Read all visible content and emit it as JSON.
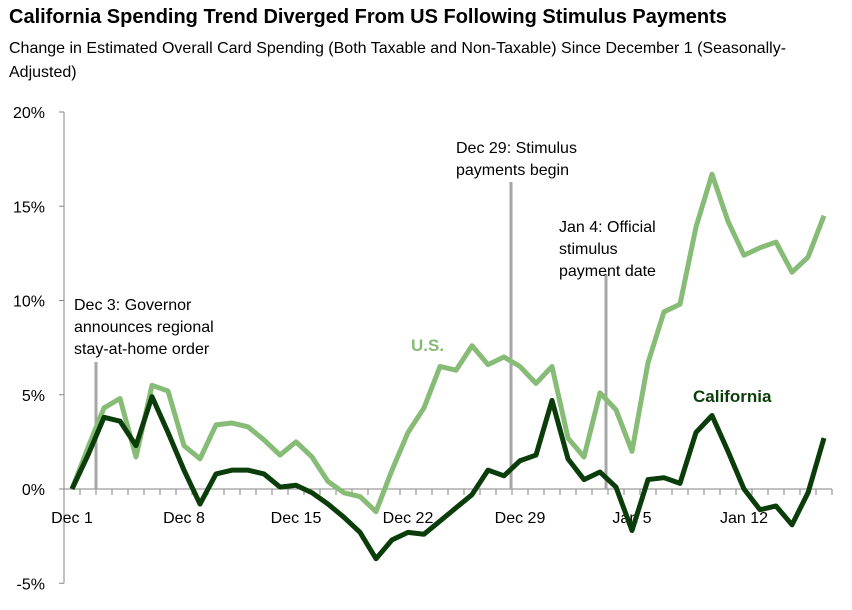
{
  "chart_data": {
    "type": "line",
    "title": "California Spending Trend Diverged From US Following Stimulus Payments",
    "subtitle": "Change in Estimated Overall Card Spending (Both Taxable and Non-Taxable) Since December 1 (Seasonally-Adjusted)",
    "xlabel": "",
    "ylabel": "",
    "ylim": [
      -5,
      20
    ],
    "yticks": [
      20,
      15,
      10,
      5,
      0,
      -5
    ],
    "ytick_labels": [
      "20%",
      "15%",
      "10%",
      "5%",
      "0%",
      "-5%"
    ],
    "xtick_labels": [
      {
        "label": "Dec 1",
        "day": 0
      },
      {
        "label": "Dec 8",
        "day": 7
      },
      {
        "label": "Dec 15",
        "day": 14
      },
      {
        "label": "Dec 22",
        "day": 21
      },
      {
        "label": "Dec 29",
        "day": 28
      },
      {
        "label": "Jan 5",
        "day": 35
      },
      {
        "label": "Jan 12",
        "day": 42
      }
    ],
    "x_start": "Dec 1",
    "x_end": "Jan 17",
    "grid": false,
    "series": [
      {
        "name": "U.S.",
        "color": "#86bc76",
        "values": [
          0,
          2.2,
          4.3,
          4.8,
          1.7,
          5.5,
          5.2,
          2.3,
          1.6,
          3.4,
          3.5,
          3.3,
          2.6,
          1.8,
          2.5,
          1.7,
          0.4,
          -0.2,
          -0.4,
          -1.2,
          1.0,
          3.0,
          4.3,
          6.5,
          6.3,
          7.6,
          6.6,
          7.0,
          6.5,
          5.6,
          6.5,
          2.7,
          1.7,
          5.1,
          4.2,
          2.0,
          6.7,
          9.4,
          9.8,
          13.9,
          16.7,
          14.2,
          12.4,
          12.8,
          13.1,
          11.5,
          12.3,
          14.5
        ]
      },
      {
        "name": "California",
        "color": "#0b3d0b",
        "values": [
          0,
          1.8,
          3.8,
          3.6,
          2.3,
          4.9,
          3.0,
          1.0,
          -0.8,
          0.8,
          1.0,
          1.0,
          0.8,
          0.1,
          0.2,
          -0.2,
          -0.8,
          -1.5,
          -2.3,
          -3.7,
          -2.7,
          -2.3,
          -2.4,
          -1.7,
          -1.0,
          -0.3,
          1.0,
          0.7,
          1.5,
          1.8,
          4.7,
          1.6,
          0.5,
          0.9,
          0.1,
          -2.2,
          0.5,
          0.6,
          0.3,
          3.0,
          3.9,
          2.0,
          0.0,
          -1.1,
          -0.9,
          -1.9,
          -0.2,
          2.7
        ]
      }
    ],
    "annotations": [
      {
        "lines": [
          "Dec 3: Governor",
          "announces regional",
          "stay-at-home order"
        ],
        "day": 1.5
      },
      {
        "lines": [
          "Dec 29: Stimulus",
          "payments begin"
        ],
        "day": 27.4
      },
      {
        "lines": [
          "Jan 4: Official",
          "stimulus",
          "payment date"
        ],
        "day": 33.4
      }
    ],
    "legend": "inline labels"
  }
}
